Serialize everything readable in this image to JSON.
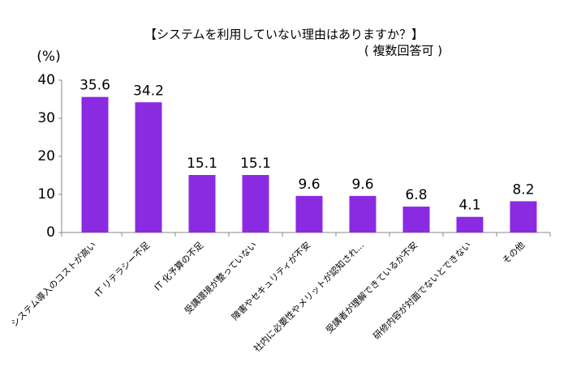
{
  "chart_data": {
    "type": "bar",
    "title": "【システムを利用していない理由はありますか？】",
    "subtitle": "( 複数回答可 )",
    "y_label": "(%)",
    "categories": [
      "システム導入のコストが高い",
      "IT リテラシー不足",
      "IT 化予算の不足",
      "受講環境が整っていない",
      "障害やセキュリティが不安",
      "社内に必要性やメリットが認知され...",
      "受講者が理解できているか不安",
      "研修内容が対面でないとできない",
      "その他"
    ],
    "values": [
      35.6,
      34.2,
      15.1,
      15.1,
      9.6,
      9.6,
      6.8,
      4.1,
      8.2
    ],
    "color": "#8a2be2",
    "ylim": [
      0,
      40
    ],
    "yticks": [
      0,
      10,
      20,
      30,
      40
    ],
    "grid": false
  }
}
